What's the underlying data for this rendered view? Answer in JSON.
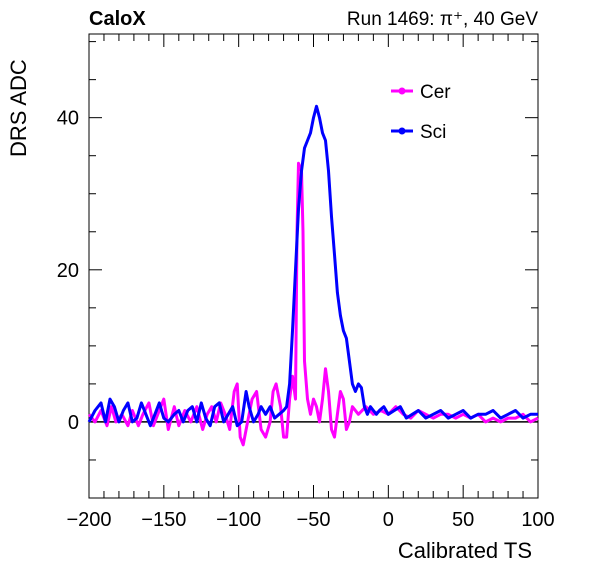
{
  "header": {
    "left": "CaloX",
    "right": "Run 1469:   π⁺, 40 GeV"
  },
  "chart_data": {
    "type": "line",
    "xlabel": "Calibrated TS",
    "ylabel": "DRS ADC",
    "xlim": [
      -200,
      100
    ],
    "ylim": [
      -10,
      51
    ],
    "xticks": [
      -200,
      -150,
      -100,
      -50,
      0,
      50,
      100
    ],
    "yticks": [
      0,
      20,
      40
    ],
    "zero_line": true,
    "legend_position": "top-right",
    "series": [
      {
        "name": "Cer",
        "color": "#ff00ff",
        "points": [
          [
            -200,
            1
          ],
          [
            -196,
            0
          ],
          [
            -192,
            1.5
          ],
          [
            -188,
            -0.5
          ],
          [
            -185,
            2
          ],
          [
            -182,
            0
          ],
          [
            -178,
            1
          ],
          [
            -174,
            -0.5
          ],
          [
            -171,
            1.5
          ],
          [
            -167,
            -0.5
          ],
          [
            -164,
            1
          ],
          [
            -160,
            2.5
          ],
          [
            -157,
            -0.5
          ],
          [
            -154,
            1
          ],
          [
            -150,
            3
          ],
          [
            -147,
            -1
          ],
          [
            -143,
            2
          ],
          [
            -140,
            -0.5
          ],
          [
            -136,
            1.5
          ],
          [
            -132,
            0
          ],
          [
            -128,
            2
          ],
          [
            -124,
            -1
          ],
          [
            -121,
            1
          ],
          [
            -118,
            2
          ],
          [
            -115,
            0
          ],
          [
            -112,
            2.5
          ],
          [
            -109,
            1
          ],
          [
            -106,
            -1
          ],
          [
            -103,
            4
          ],
          [
            -101,
            5
          ],
          [
            -99,
            -2
          ],
          [
            -97,
            -3
          ],
          [
            -94,
            0
          ],
          [
            -91,
            3
          ],
          [
            -88,
            4
          ],
          [
            -85,
            -1
          ],
          [
            -82,
            -2
          ],
          [
            -79,
            0
          ],
          [
            -77,
            4
          ],
          [
            -75,
            5
          ],
          [
            -72,
            2
          ],
          [
            -70,
            -2
          ],
          [
            -68,
            -2
          ],
          [
            -66,
            3
          ],
          [
            -64,
            6
          ],
          [
            -62,
            3
          ],
          [
            -61,
            25
          ],
          [
            -60,
            34
          ],
          [
            -58,
            33
          ],
          [
            -57,
            25
          ],
          [
            -56,
            8
          ],
          [
            -54,
            3
          ],
          [
            -52,
            1
          ],
          [
            -50,
            3
          ],
          [
            -48,
            2
          ],
          [
            -46,
            0
          ],
          [
            -44,
            3
          ],
          [
            -42,
            7
          ],
          [
            -40,
            4
          ],
          [
            -38,
            -1
          ],
          [
            -36,
            -2
          ],
          [
            -34,
            1
          ],
          [
            -32,
            4
          ],
          [
            -30,
            3
          ],
          [
            -28,
            -1
          ],
          [
            -26,
            0
          ],
          [
            -24,
            2
          ],
          [
            -20,
            1
          ],
          [
            -15,
            2
          ],
          [
            -10,
            1
          ],
          [
            -5,
            1.5
          ],
          [
            0,
            1
          ],
          [
            5,
            2
          ],
          [
            10,
            1
          ],
          [
            15,
            0.5
          ],
          [
            20,
            1.5
          ],
          [
            25,
            1
          ],
          [
            30,
            0.5
          ],
          [
            35,
            1
          ],
          [
            40,
            1
          ],
          [
            45,
            0.5
          ],
          [
            50,
            1
          ],
          [
            55,
            0.5
          ],
          [
            60,
            1
          ],
          [
            65,
            0
          ],
          [
            70,
            0.5
          ],
          [
            75,
            0
          ],
          [
            80,
            0.5
          ],
          [
            85,
            0.5
          ],
          [
            90,
            1
          ],
          [
            95,
            0
          ],
          [
            100,
            0.5
          ]
        ]
      },
      {
        "name": "Sci",
        "color": "#0000ff",
        "points": [
          [
            -200,
            0
          ],
          [
            -196,
            1.5
          ],
          [
            -192,
            2.5
          ],
          [
            -189,
            0
          ],
          [
            -186,
            3
          ],
          [
            -183,
            2
          ],
          [
            -180,
            0
          ],
          [
            -177,
            1.5
          ],
          [
            -174,
            2.5
          ],
          [
            -171,
            0
          ],
          [
            -168,
            0.5
          ],
          [
            -165,
            2.5
          ],
          [
            -162,
            1
          ],
          [
            -159,
            -0.5
          ],
          [
            -156,
            1
          ],
          [
            -153,
            2.5
          ],
          [
            -150,
            0.5
          ],
          [
            -147,
            0
          ],
          [
            -143,
            1
          ],
          [
            -140,
            1.5
          ],
          [
            -137,
            0
          ],
          [
            -134,
            1.5
          ],
          [
            -131,
            2
          ],
          [
            -128,
            0
          ],
          [
            -125,
            2.5
          ],
          [
            -122,
            0.5
          ],
          [
            -119,
            -0.5
          ],
          [
            -116,
            2
          ],
          [
            -113,
            2.5
          ],
          [
            -110,
            0
          ],
          [
            -107,
            1
          ],
          [
            -104,
            2
          ],
          [
            -101,
            -0.5
          ],
          [
            -98,
            0
          ],
          [
            -95,
            4
          ],
          [
            -93,
            2
          ],
          [
            -90,
            0
          ],
          [
            -87,
            1
          ],
          [
            -85,
            2
          ],
          [
            -82,
            1
          ],
          [
            -79,
            2
          ],
          [
            -76,
            0.5
          ],
          [
            -73,
            1
          ],
          [
            -70,
            1.5
          ],
          [
            -68,
            2
          ],
          [
            -66,
            5
          ],
          [
            -64,
            12
          ],
          [
            -62,
            20
          ],
          [
            -60,
            28
          ],
          [
            -58,
            33
          ],
          [
            -56,
            36
          ],
          [
            -54,
            37
          ],
          [
            -52,
            38
          ],
          [
            -50,
            40
          ],
          [
            -48,
            41.5
          ],
          [
            -46,
            40
          ],
          [
            -44,
            38
          ],
          [
            -42,
            37
          ],
          [
            -40,
            33
          ],
          [
            -38,
            27
          ],
          [
            -36,
            22
          ],
          [
            -34,
            17
          ],
          [
            -32,
            14
          ],
          [
            -30,
            12
          ],
          [
            -28,
            11
          ],
          [
            -26,
            8
          ],
          [
            -24,
            5
          ],
          [
            -22,
            4
          ],
          [
            -20,
            5
          ],
          [
            -18,
            4.5
          ],
          [
            -16,
            2
          ],
          [
            -14,
            1
          ],
          [
            -12,
            2
          ],
          [
            -10,
            1.5
          ],
          [
            -8,
            1
          ],
          [
            -6,
            1.5
          ],
          [
            -3,
            2
          ],
          [
            0,
            1
          ],
          [
            4,
            1.5
          ],
          [
            8,
            2
          ],
          [
            12,
            0.5
          ],
          [
            16,
            1
          ],
          [
            20,
            1.5
          ],
          [
            25,
            0.5
          ],
          [
            30,
            1
          ],
          [
            35,
            1.5
          ],
          [
            40,
            0.5
          ],
          [
            45,
            1
          ],
          [
            50,
            1.5
          ],
          [
            55,
            0.5
          ],
          [
            60,
            1
          ],
          [
            65,
            1
          ],
          [
            70,
            1.5
          ],
          [
            75,
            0.5
          ],
          [
            80,
            1
          ],
          [
            85,
            1.5
          ],
          [
            90,
            0.5
          ],
          [
            95,
            1
          ],
          [
            100,
            1
          ]
        ]
      }
    ]
  }
}
